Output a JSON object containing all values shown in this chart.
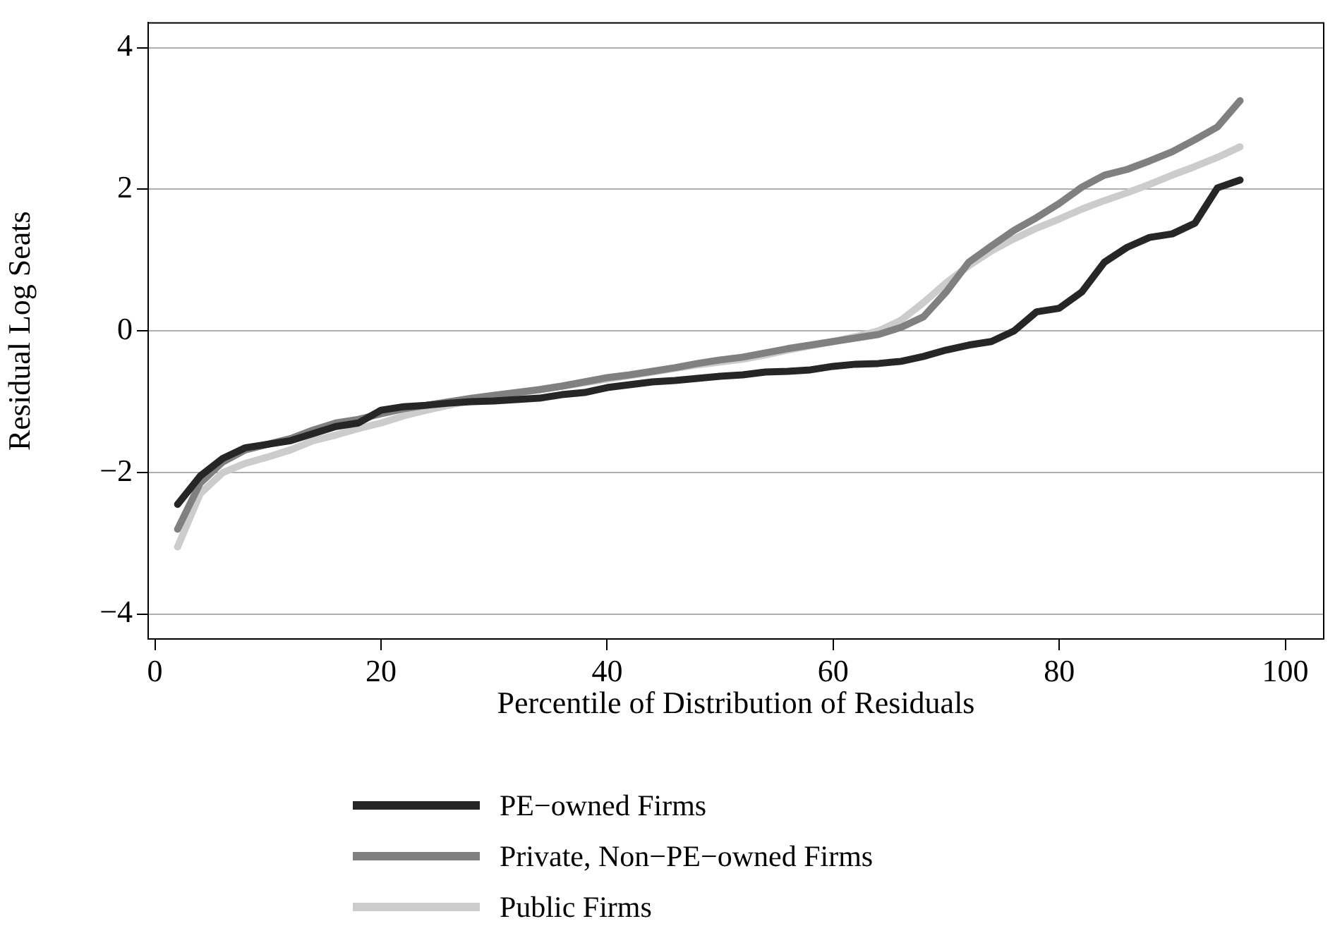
{
  "chart_data": {
    "type": "line",
    "xlabel": "Percentile of Distribution of Residuals",
    "ylabel": "Residual Log Seats",
    "x": [
      2,
      4,
      6,
      8,
      10,
      12,
      14,
      16,
      18,
      20,
      22,
      24,
      26,
      28,
      30,
      32,
      34,
      36,
      38,
      40,
      42,
      44,
      46,
      48,
      50,
      52,
      54,
      56,
      58,
      60,
      62,
      64,
      66,
      68,
      70,
      72,
      74,
      76,
      78,
      80,
      82,
      84,
      86,
      88,
      90,
      92,
      94,
      96
    ],
    "series": [
      {
        "name": "PE−owned Firms",
        "color": "#262626",
        "values": [
          -2.45,
          -2.05,
          -1.8,
          -1.65,
          -1.6,
          -1.55,
          -1.45,
          -1.35,
          -1.3,
          -1.12,
          -1.07,
          -1.05,
          -1.02,
          -1.0,
          -0.99,
          -0.97,
          -0.95,
          -0.9,
          -0.87,
          -0.8,
          -0.76,
          -0.72,
          -0.7,
          -0.67,
          -0.64,
          -0.62,
          -0.58,
          -0.57,
          -0.55,
          -0.5,
          -0.47,
          -0.46,
          -0.43,
          -0.36,
          -0.27,
          -0.2,
          -0.15,
          0.0,
          0.27,
          0.32,
          0.55,
          0.97,
          1.18,
          1.32,
          1.37,
          1.52,
          2.02,
          2.13
        ]
      },
      {
        "name": "Private, Non−PE−owned Firms",
        "color": "#808080",
        "values": [
          -2.8,
          -2.15,
          -1.85,
          -1.68,
          -1.6,
          -1.52,
          -1.4,
          -1.3,
          -1.25,
          -1.17,
          -1.1,
          -1.05,
          -1.0,
          -0.95,
          -0.91,
          -0.87,
          -0.83,
          -0.78,
          -0.72,
          -0.66,
          -0.62,
          -0.57,
          -0.52,
          -0.46,
          -0.41,
          -0.37,
          -0.31,
          -0.25,
          -0.2,
          -0.15,
          -0.1,
          -0.05,
          0.05,
          0.2,
          0.55,
          0.97,
          1.2,
          1.42,
          1.6,
          1.8,
          2.03,
          2.2,
          2.28,
          2.4,
          2.53,
          2.7,
          2.88,
          3.25
        ]
      },
      {
        "name": "Public Firms",
        "color": "#cccccc",
        "values": [
          -3.05,
          -2.3,
          -2.0,
          -1.87,
          -1.78,
          -1.68,
          -1.55,
          -1.47,
          -1.38,
          -1.3,
          -1.2,
          -1.12,
          -1.05,
          -0.98,
          -0.93,
          -0.88,
          -0.83,
          -0.78,
          -0.73,
          -0.68,
          -0.63,
          -0.58,
          -0.53,
          -0.48,
          -0.44,
          -0.4,
          -0.34,
          -0.27,
          -0.21,
          -0.15,
          -0.08,
          0.0,
          0.15,
          0.4,
          0.68,
          0.92,
          1.13,
          1.3,
          1.45,
          1.58,
          1.72,
          1.84,
          1.95,
          2.07,
          2.2,
          2.32,
          2.45,
          2.6
        ]
      }
    ],
    "xlim": [
      -0.6,
      103.4
    ],
    "xticks": [
      0,
      20,
      40,
      60,
      80,
      100
    ],
    "ylim": [
      -4.35,
      4.35
    ],
    "yticks": [
      {
        "value": -4,
        "label": "−4"
      },
      {
        "value": -2,
        "label": "−2"
      },
      0,
      2,
      4
    ],
    "grid": "y",
    "legend": "bottom",
    "marker": "none",
    "line_style": "solid"
  }
}
